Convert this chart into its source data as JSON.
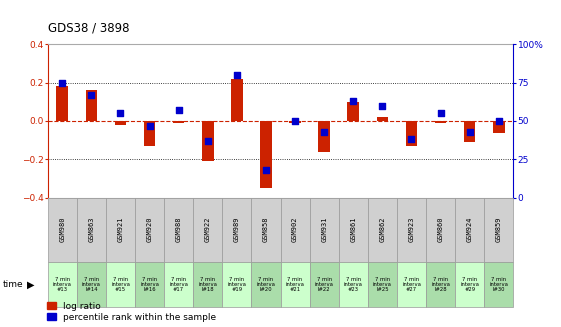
{
  "title": "GDS38 / 3898",
  "samples": [
    "GSM980",
    "GSM863",
    "GSM921",
    "GSM920",
    "GSM988",
    "GSM922",
    "GSM989",
    "GSM858",
    "GSM902",
    "GSM931",
    "GSM861",
    "GSM862",
    "GSM923",
    "GSM860",
    "GSM924",
    "GSM859"
  ],
  "intervals": [
    "7 min\ninterva\n#13",
    "7 min\ninterva\nl#14",
    "7 min\ninterva\n#15",
    "7 min\ninterva\nl#16",
    "7 min\ninterva\n#17",
    "7 min\ninterva\nl#18",
    "7 min\ninterva\n#19",
    "7 min\ninterva\nl#20",
    "7 min\ninterva\n#21",
    "7 min\ninterva\nl#22",
    "7 min\ninterva\n#23",
    "7 min\ninterva\nl#25",
    "7 min\ninterva\n#27",
    "7 min\ninterva\nl#28",
    "7 min\ninterva\n#29",
    "7 min\ninterva\nl#30"
  ],
  "log_ratio": [
    0.18,
    0.16,
    -0.02,
    -0.13,
    -0.01,
    -0.21,
    0.22,
    -0.35,
    -0.01,
    -0.16,
    0.1,
    0.02,
    -0.13,
    -0.01,
    -0.11,
    -0.06
  ],
  "percentile_rank": [
    75,
    67,
    55,
    47,
    57,
    37,
    80,
    18,
    50,
    43,
    63,
    60,
    38,
    55,
    43,
    50
  ],
  "ylim_left": [
    -0.4,
    0.4
  ],
  "ylim_right": [
    0,
    100
  ],
  "yticks_left": [
    -0.4,
    -0.2,
    0.0,
    0.2,
    0.4
  ],
  "yticks_right": [
    0,
    25,
    50,
    75,
    100
  ],
  "plot_bg": "#ffffff",
  "bar_color": "#cc2200",
  "dot_color": "#0000cc",
  "grid_color": "#000000",
  "zero_line_color": "#cc2200",
  "header_bg_gray": "#d0d0d0",
  "header_bg_green1": "#ccffcc",
  "header_bg_green2": "#aaddaa",
  "time_label": "time"
}
